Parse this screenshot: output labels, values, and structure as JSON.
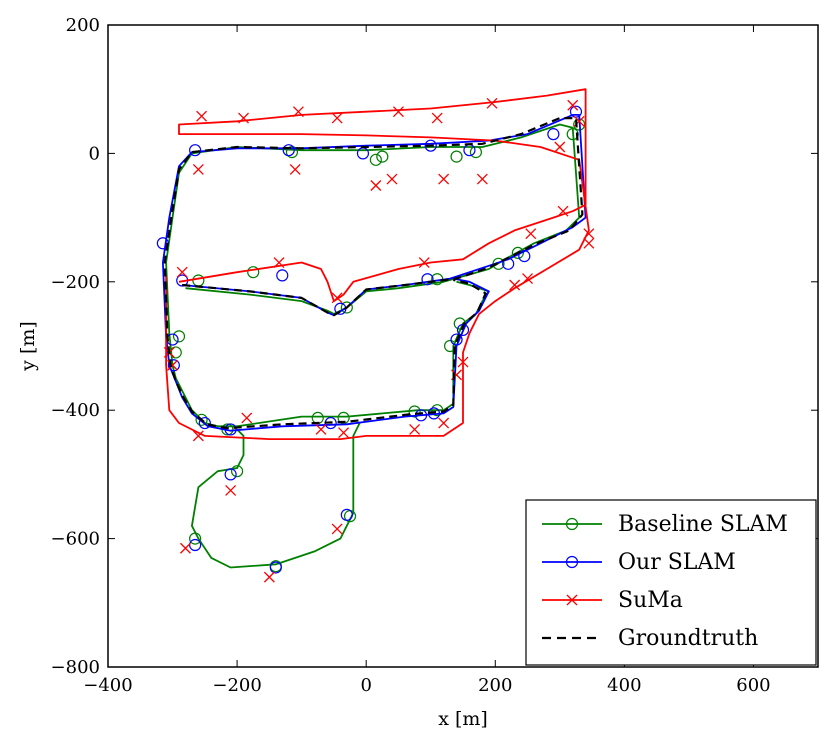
{
  "chart_data": {
    "type": "line",
    "title": "",
    "xlabel": "x [m]",
    "ylabel": "y [m]",
    "xlim": [
      -400,
      700
    ],
    "ylim": [
      -800,
      200
    ],
    "x_ticks": [
      -400,
      -200,
      0,
      200,
      400,
      600
    ],
    "y_ticks": [
      -800,
      -600,
      -400,
      -200,
      0,
      200
    ],
    "x_tick_labels": [
      "−400",
      "−200",
      "0",
      "200",
      "400",
      "600"
    ],
    "y_tick_labels": [
      "−800",
      "−600",
      "−400",
      "−200",
      "0",
      "200"
    ],
    "grid": false,
    "legend_position": "bottom-right",
    "series": [
      {
        "name": "Baseline SLAM",
        "color": "#008000",
        "marker": "circle",
        "points": [
          [
            -280,
            -210
          ],
          [
            -180,
            -220
          ],
          [
            -100,
            -230
          ],
          [
            -60,
            -245
          ],
          [
            -50,
            -250
          ],
          [
            -30,
            -240
          ],
          [
            0,
            -215
          ],
          [
            50,
            -210
          ],
          [
            120,
            -200
          ],
          [
            190,
            -180
          ],
          [
            215,
            -165
          ],
          [
            260,
            -140
          ],
          [
            310,
            -120
          ],
          [
            330,
            -100
          ],
          [
            320,
            40
          ],
          [
            300,
            45
          ],
          [
            240,
            25
          ],
          [
            180,
            10
          ],
          [
            100,
            10
          ],
          [
            0,
            5
          ],
          [
            -100,
            5
          ],
          [
            -200,
            10
          ],
          [
            -270,
            0
          ],
          [
            -290,
            -30
          ],
          [
            -300,
            -100
          ],
          [
            -310,
            -170
          ],
          [
            -305,
            -280
          ],
          [
            -300,
            -330
          ],
          [
            -295,
            -350
          ],
          [
            -280,
            -380
          ],
          [
            -270,
            -400
          ],
          [
            -250,
            -420
          ],
          [
            -230,
            -425
          ],
          [
            -200,
            -425
          ],
          [
            -100,
            -410
          ],
          [
            -30,
            -410
          ],
          [
            80,
            -400
          ],
          [
            120,
            -400
          ],
          [
            135,
            -390
          ],
          [
            135,
            -300
          ],
          [
            150,
            -265
          ],
          [
            170,
            -250
          ],
          [
            180,
            -230
          ],
          [
            190,
            -215
          ],
          [
            160,
            -205
          ],
          [
            140,
            -200
          ]
        ],
        "track": [
          [
            -200,
            -430
          ],
          [
            -190,
            -440
          ],
          [
            -190,
            -470
          ],
          [
            -200,
            -490
          ],
          [
            -230,
            -495
          ],
          [
            -260,
            -520
          ],
          [
            -270,
            -580
          ],
          [
            -260,
            -600
          ],
          [
            -240,
            -630
          ],
          [
            -210,
            -645
          ],
          [
            -140,
            -640
          ],
          [
            -80,
            -620
          ],
          [
            -40,
            -600
          ],
          [
            -30,
            -580
          ],
          [
            -20,
            -560
          ],
          [
            -20,
            -440
          ],
          [
            -10,
            -420
          ]
        ],
        "marker_points": [
          [
            -260,
            -198
          ],
          [
            -175,
            -185
          ],
          [
            -30,
            -240
          ],
          [
            110,
            -196
          ],
          [
            205,
            -172
          ],
          [
            235,
            -155
          ],
          [
            330,
            45
          ],
          [
            320,
            30
          ],
          [
            170,
            2
          ],
          [
            140,
            -5
          ],
          [
            25,
            -5
          ],
          [
            15,
            -10
          ],
          [
            -115,
            2
          ],
          [
            -290,
            -285
          ],
          [
            -295,
            -310
          ],
          [
            -255,
            -415
          ],
          [
            -215,
            -430
          ],
          [
            -75,
            -412
          ],
          [
            -35,
            -412
          ],
          [
            75,
            -402
          ],
          [
            110,
            -400
          ],
          [
            130,
            -300
          ],
          [
            145,
            -265
          ],
          [
            -200,
            -495
          ],
          [
            -265,
            -600
          ],
          [
            -140,
            -643
          ],
          [
            -25,
            -565
          ]
        ]
      },
      {
        "name": "Our SLAM",
        "color": "#0000ff",
        "marker": "circle",
        "points": [
          [
            -285,
            -205
          ],
          [
            -180,
            -215
          ],
          [
            -100,
            -225
          ],
          [
            -60,
            -248
          ],
          [
            -50,
            -252
          ],
          [
            -30,
            -240
          ],
          [
            0,
            -212
          ],
          [
            60,
            -205
          ],
          [
            130,
            -195
          ],
          [
            190,
            -175
          ],
          [
            220,
            -165
          ],
          [
            270,
            -140
          ],
          [
            320,
            -115
          ],
          [
            340,
            -100
          ],
          [
            330,
            60
          ],
          [
            320,
            60
          ],
          [
            250,
            30
          ],
          [
            190,
            20
          ],
          [
            100,
            15
          ],
          [
            0,
            12
          ],
          [
            -100,
            8
          ],
          [
            -200,
            8
          ],
          [
            -270,
            2
          ],
          [
            -290,
            -20
          ],
          [
            -305,
            -100
          ],
          [
            -315,
            -170
          ],
          [
            -310,
            -285
          ],
          [
            -305,
            -330
          ],
          [
            -295,
            -355
          ],
          [
            -285,
            -380
          ],
          [
            -270,
            -405
          ],
          [
            -245,
            -425
          ],
          [
            -210,
            -432
          ],
          [
            -130,
            -425
          ],
          [
            -30,
            -422
          ],
          [
            60,
            -410
          ],
          [
            120,
            -405
          ],
          [
            135,
            -395
          ],
          [
            140,
            -300
          ],
          [
            155,
            -265
          ],
          [
            175,
            -245
          ],
          [
            190,
            -215
          ],
          [
            160,
            -200
          ],
          [
            135,
            -195
          ]
        ],
        "marker_points": [
          [
            -285,
            -198
          ],
          [
            -130,
            -190
          ],
          [
            -40,
            -242
          ],
          [
            95,
            -196
          ],
          [
            220,
            -172
          ],
          [
            245,
            -160
          ],
          [
            325,
            65
          ],
          [
            290,
            30
          ],
          [
            160,
            5
          ],
          [
            100,
            12
          ],
          [
            -5,
            0
          ],
          [
            -120,
            5
          ],
          [
            -265,
            5
          ],
          [
            -315,
            -140
          ],
          [
            -300,
            -290
          ],
          [
            -298,
            -330
          ],
          [
            -250,
            -420
          ],
          [
            -210,
            -430
          ],
          [
            -55,
            -420
          ],
          [
            85,
            -408
          ],
          [
            105,
            -405
          ],
          [
            140,
            -290
          ],
          [
            150,
            -275
          ],
          [
            -210,
            -500
          ],
          [
            -265,
            -610
          ],
          [
            -140,
            -645
          ],
          [
            -30,
            -563
          ]
        ]
      },
      {
        "name": "SuMa",
        "color": "#ff0000",
        "marker": "x",
        "points": [
          [
            -290,
            -200
          ],
          [
            -200,
            -185
          ],
          [
            -100,
            -170
          ],
          [
            -70,
            -180
          ],
          [
            -60,
            -200
          ],
          [
            -50,
            -230
          ],
          [
            -35,
            -220
          ],
          [
            -20,
            -200
          ],
          [
            50,
            -180
          ],
          [
            100,
            -170
          ],
          [
            150,
            -165
          ],
          [
            190,
            -140
          ],
          [
            230,
            -120
          ],
          [
            260,
            -110
          ],
          [
            290,
            -100
          ],
          [
            320,
            -90
          ],
          [
            340,
            -80
          ],
          [
            340,
            100
          ],
          [
            280,
            90
          ],
          [
            200,
            80
          ],
          [
            100,
            70
          ],
          [
            0,
            65
          ],
          [
            -100,
            60
          ],
          [
            -200,
            50
          ],
          [
            -290,
            45
          ],
          [
            -290,
            30
          ],
          [
            -200,
            30
          ],
          [
            -100,
            30
          ],
          [
            0,
            28
          ],
          [
            100,
            25
          ],
          [
            200,
            20
          ],
          [
            270,
            10
          ],
          [
            330,
            -10
          ],
          [
            345,
            -120
          ],
          [
            330,
            -150
          ],
          [
            280,
            -180
          ],
          [
            230,
            -210
          ],
          [
            200,
            -230
          ],
          [
            175,
            -250
          ],
          [
            160,
            -280
          ],
          [
            150,
            -310
          ],
          [
            150,
            -420
          ],
          [
            120,
            -440
          ],
          [
            0,
            -440
          ],
          [
            -40,
            -445
          ],
          [
            -150,
            -445
          ],
          [
            -250,
            -440
          ],
          [
            -290,
            -420
          ],
          [
            -305,
            -400
          ],
          [
            -310,
            -330
          ],
          [
            -310,
            -190
          ]
        ],
        "marker_points": [
          [
            -255,
            58
          ],
          [
            -190,
            55
          ],
          [
            -105,
            65
          ],
          [
            -45,
            55
          ],
          [
            50,
            65
          ],
          [
            110,
            55
          ],
          [
            195,
            78
          ],
          [
            320,
            75
          ],
          [
            330,
            50
          ],
          [
            300,
            10
          ],
          [
            180,
            -40
          ],
          [
            120,
            -40
          ],
          [
            40,
            -40
          ],
          [
            15,
            -50
          ],
          [
            -110,
            -25
          ],
          [
            -260,
            -25
          ],
          [
            -285,
            -185
          ],
          [
            -135,
            -170
          ],
          [
            -45,
            -225
          ],
          [
            90,
            -170
          ],
          [
            255,
            -125
          ],
          [
            305,
            -90
          ],
          [
            345,
            -125
          ],
          [
            345,
            -140
          ],
          [
            250,
            -195
          ],
          [
            230,
            -205
          ],
          [
            150,
            -325
          ],
          [
            140,
            -345
          ],
          [
            120,
            -420
          ],
          [
            75,
            -430
          ],
          [
            -35,
            -435
          ],
          [
            -70,
            -430
          ],
          [
            -260,
            -440
          ],
          [
            -185,
            -412
          ],
          [
            -300,
            -330
          ],
          [
            -305,
            -310
          ],
          [
            -210,
            -525
          ],
          [
            -280,
            -615
          ],
          [
            -150,
            -660
          ],
          [
            -45,
            -585
          ]
        ]
      },
      {
        "name": "Groundtruth",
        "color": "#000000",
        "style": "dashed",
        "points": [
          [
            -285,
            -205
          ],
          [
            -180,
            -215
          ],
          [
            -100,
            -225
          ],
          [
            -60,
            -248
          ],
          [
            -50,
            -252
          ],
          [
            -30,
            -240
          ],
          [
            0,
            -212
          ],
          [
            60,
            -205
          ],
          [
            140,
            -195
          ],
          [
            190,
            -178
          ],
          [
            215,
            -165
          ],
          [
            265,
            -140
          ],
          [
            315,
            -120
          ],
          [
            335,
            -95
          ],
          [
            325,
            55
          ],
          [
            300,
            55
          ],
          [
            240,
            30
          ],
          [
            180,
            15
          ],
          [
            100,
            12
          ],
          [
            0,
            10
          ],
          [
            -100,
            8
          ],
          [
            -200,
            10
          ],
          [
            -270,
            2
          ],
          [
            -290,
            -25
          ],
          [
            -302,
            -100
          ],
          [
            -312,
            -170
          ],
          [
            -308,
            -285
          ],
          [
            -303,
            -330
          ],
          [
            -295,
            -355
          ],
          [
            -283,
            -380
          ],
          [
            -270,
            -402
          ],
          [
            -247,
            -422
          ],
          [
            -215,
            -428
          ],
          [
            -130,
            -422
          ],
          [
            -30,
            -418
          ],
          [
            70,
            -406
          ],
          [
            120,
            -402
          ],
          [
            135,
            -392
          ],
          [
            137,
            -300
          ],
          [
            152,
            -265
          ],
          [
            172,
            -248
          ],
          [
            185,
            -218
          ],
          [
            160,
            -203
          ],
          [
            135,
            -197
          ]
        ]
      }
    ]
  }
}
